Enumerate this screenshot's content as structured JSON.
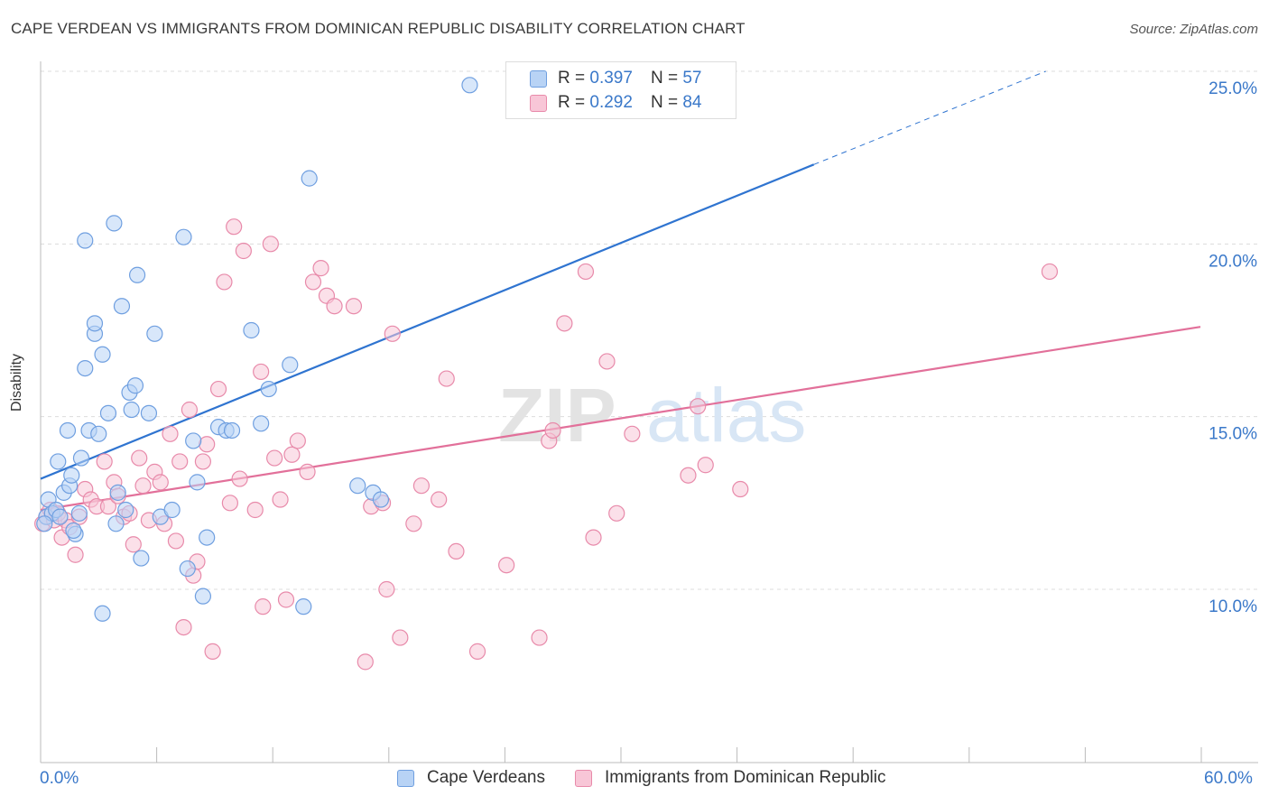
{
  "title": "CAPE VERDEAN VS IMMIGRANTS FROM DOMINICAN REPUBLIC DISABILITY CORRELATION CHART",
  "source": "Source: ZipAtlas.com",
  "watermark": {
    "zip": "ZIP",
    "atlas": "atlas"
  },
  "legend": {
    "r_label": "R =",
    "n_label": "N =",
    "items": [
      {
        "r": "0.397",
        "n": "57"
      },
      {
        "r": "0.292",
        "n": "84"
      }
    ]
  },
  "chart_data": {
    "type": "scatter",
    "title": "CAPE VERDEAN VS IMMIGRANTS FROM DOMINICAN REPUBLIC DISABILITY CORRELATION CHART",
    "xlabel": "",
    "ylabel": "Disability",
    "xlim": [
      0,
      60
    ],
    "ylim": [
      5,
      26
    ],
    "x_tick_labels": [
      "0.0%",
      "60.0%"
    ],
    "y_ticks": [
      10,
      15,
      20,
      25
    ],
    "y_tick_labels": [
      "10.0%",
      "15.0%",
      "20.0%",
      "25.0%"
    ],
    "grid": true,
    "legend_position": "top-center",
    "colors": {
      "blue_fill": "#b8d3f5",
      "blue_stroke": "#6f9fe0",
      "blue_line": "#2f74d0",
      "pink_fill": "#f8c6d7",
      "pink_stroke": "#e88aaa",
      "pink_line": "#e2709a",
      "tick_text": "#3a78c9",
      "grid": "#dcdcdc"
    },
    "series": [
      {
        "name": "Cape Verdeans",
        "color": "blue",
        "r": 0.397,
        "n": 57,
        "trend": {
          "x0": 0,
          "y0": 13.2,
          "x1": 40,
          "y1": 22.3,
          "dash_x1": 52,
          "dash_y1": 25.0
        },
        "points": [
          [
            0.3,
            12.1
          ],
          [
            0.4,
            12.6
          ],
          [
            0.6,
            12.2
          ],
          [
            0.8,
            12.3
          ],
          [
            0.9,
            13.7
          ],
          [
            1.0,
            12.1
          ],
          [
            1.2,
            12.8
          ],
          [
            1.4,
            14.6
          ],
          [
            1.5,
            13.0
          ],
          [
            1.6,
            13.3
          ],
          [
            1.8,
            11.6
          ],
          [
            2.0,
            12.2
          ],
          [
            2.1,
            13.8
          ],
          [
            2.3,
            20.1
          ],
          [
            2.3,
            16.4
          ],
          [
            2.5,
            14.6
          ],
          [
            2.8,
            17.4
          ],
          [
            2.8,
            17.7
          ],
          [
            3.0,
            14.5
          ],
          [
            3.2,
            16.8
          ],
          [
            3.2,
            9.3
          ],
          [
            3.5,
            15.1
          ],
          [
            3.8,
            20.6
          ],
          [
            3.9,
            11.9
          ],
          [
            4.0,
            12.8
          ],
          [
            4.2,
            18.2
          ],
          [
            4.4,
            12.3
          ],
          [
            4.6,
            15.7
          ],
          [
            4.7,
            15.2
          ],
          [
            4.9,
            15.9
          ],
          [
            5.0,
            19.1
          ],
          [
            5.2,
            10.9
          ],
          [
            5.6,
            15.1
          ],
          [
            5.9,
            17.4
          ],
          [
            6.2,
            12.1
          ],
          [
            6.8,
            12.3
          ],
          [
            7.4,
            20.2
          ],
          [
            7.6,
            10.6
          ],
          [
            7.9,
            14.3
          ],
          [
            8.1,
            13.1
          ],
          [
            8.4,
            9.8
          ],
          [
            8.6,
            11.5
          ],
          [
            9.2,
            14.7
          ],
          [
            9.6,
            14.6
          ],
          [
            9.9,
            14.6
          ],
          [
            10.9,
            17.5
          ],
          [
            11.4,
            14.8
          ],
          [
            11.8,
            15.8
          ],
          [
            12.9,
            16.5
          ],
          [
            13.6,
            9.5
          ],
          [
            13.9,
            21.9
          ],
          [
            16.4,
            13.0
          ],
          [
            17.2,
            12.8
          ],
          [
            17.6,
            12.6
          ],
          [
            22.2,
            24.6
          ],
          [
            0.2,
            11.9
          ],
          [
            1.7,
            11.7
          ]
        ]
      },
      {
        "name": "Immigrants from Dominican Republic",
        "color": "pink",
        "r": 0.292,
        "n": 84,
        "trend": {
          "x0": 0,
          "y0": 12.3,
          "x1": 60,
          "y1": 17.6
        },
        "points": [
          [
            0.1,
            11.9
          ],
          [
            0.3,
            12.1
          ],
          [
            0.5,
            12.3
          ],
          [
            0.7,
            12.0
          ],
          [
            0.9,
            12.2
          ],
          [
            1.1,
            11.5
          ],
          [
            1.3,
            12.0
          ],
          [
            1.5,
            11.8
          ],
          [
            1.8,
            11.0
          ],
          [
            2.0,
            12.1
          ],
          [
            2.3,
            12.9
          ],
          [
            2.6,
            12.6
          ],
          [
            2.9,
            12.4
          ],
          [
            3.3,
            13.7
          ],
          [
            3.5,
            12.4
          ],
          [
            3.8,
            13.1
          ],
          [
            4.0,
            12.7
          ],
          [
            4.3,
            12.1
          ],
          [
            4.6,
            12.2
          ],
          [
            4.8,
            11.3
          ],
          [
            5.1,
            13.8
          ],
          [
            5.3,
            13.0
          ],
          [
            5.6,
            12.0
          ],
          [
            5.9,
            13.4
          ],
          [
            6.2,
            13.1
          ],
          [
            6.4,
            11.9
          ],
          [
            6.7,
            14.5
          ],
          [
            7.0,
            11.4
          ],
          [
            7.2,
            13.7
          ],
          [
            7.4,
            8.9
          ],
          [
            7.7,
            15.2
          ],
          [
            7.9,
            10.4
          ],
          [
            8.1,
            10.8
          ],
          [
            8.4,
            13.7
          ],
          [
            8.6,
            14.2
          ],
          [
            8.9,
            8.2
          ],
          [
            9.2,
            15.8
          ],
          [
            9.5,
            18.9
          ],
          [
            9.8,
            12.5
          ],
          [
            10.0,
            20.5
          ],
          [
            10.3,
            13.2
          ],
          [
            10.5,
            19.8
          ],
          [
            11.1,
            12.3
          ],
          [
            11.4,
            16.3
          ],
          [
            11.5,
            9.5
          ],
          [
            11.9,
            20.0
          ],
          [
            12.1,
            13.8
          ],
          [
            12.4,
            12.6
          ],
          [
            12.7,
            9.7
          ],
          [
            13.0,
            13.9
          ],
          [
            13.3,
            14.3
          ],
          [
            13.8,
            13.4
          ],
          [
            14.1,
            18.9
          ],
          [
            14.5,
            19.3
          ],
          [
            14.8,
            18.5
          ],
          [
            15.2,
            18.2
          ],
          [
            16.2,
            18.2
          ],
          [
            16.8,
            7.9
          ],
          [
            17.1,
            12.4
          ],
          [
            17.7,
            12.5
          ],
          [
            17.9,
            10.0
          ],
          [
            18.2,
            17.4
          ],
          [
            18.6,
            8.6
          ],
          [
            19.3,
            11.9
          ],
          [
            19.7,
            13.0
          ],
          [
            20.6,
            12.6
          ],
          [
            21.0,
            16.1
          ],
          [
            21.5,
            11.1
          ],
          [
            22.6,
            8.2
          ],
          [
            24.1,
            10.7
          ],
          [
            25.8,
            8.6
          ],
          [
            26.3,
            14.3
          ],
          [
            26.5,
            14.6
          ],
          [
            27.1,
            17.7
          ],
          [
            28.2,
            19.2
          ],
          [
            28.6,
            11.5
          ],
          [
            29.3,
            16.6
          ],
          [
            29.8,
            12.2
          ],
          [
            30.6,
            14.5
          ],
          [
            33.5,
            13.3
          ],
          [
            34.0,
            15.3
          ],
          [
            34.4,
            13.6
          ],
          [
            36.2,
            12.9
          ],
          [
            52.2,
            19.2
          ]
        ]
      }
    ]
  },
  "bottom_legend": [
    "Cape Verdeans",
    "Immigrants from Dominican Republic"
  ]
}
